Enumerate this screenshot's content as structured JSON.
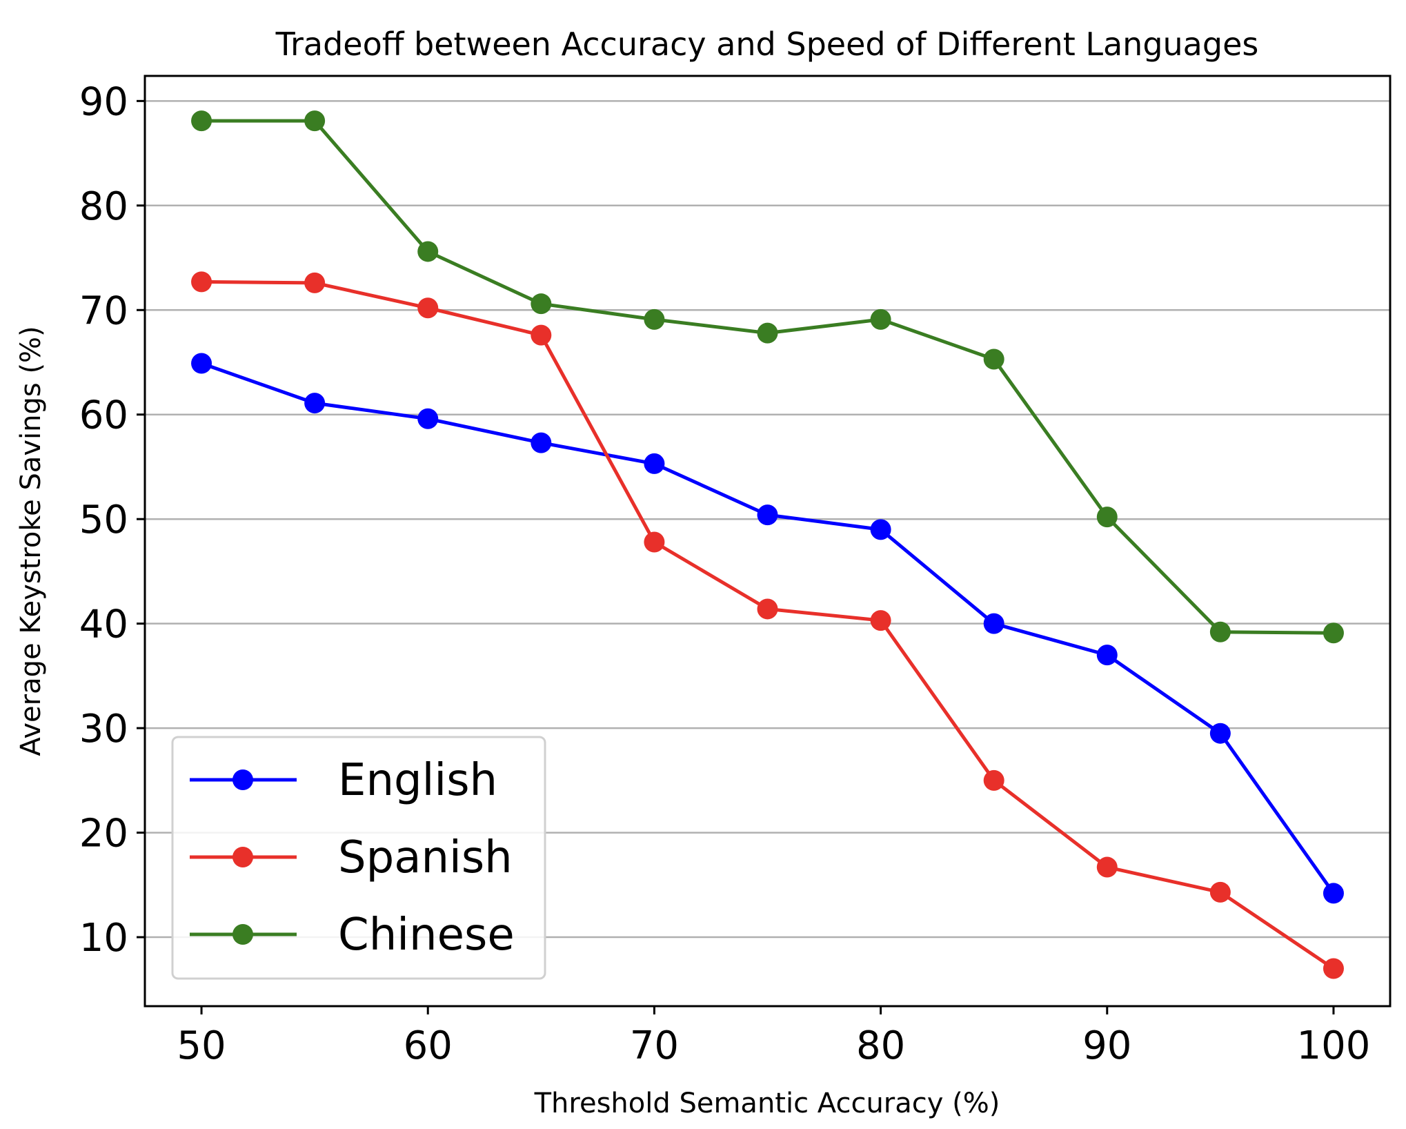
{
  "chart_data": {
    "type": "line",
    "title": "Tradeoff between Accuracy and Speed of Different Languages",
    "xlabel": "Threshold Semantic Accuracy (%)",
    "ylabel": "Average Keystroke Savings (%)",
    "xlim": [
      47.5,
      102.5
    ],
    "ylim": [
      3.4,
      92.4
    ],
    "xticks": [
      50,
      60,
      70,
      80,
      90,
      100
    ],
    "yticks": [
      10,
      20,
      30,
      40,
      50,
      60,
      70,
      80,
      90
    ],
    "grid": "horizontal",
    "legend_position": "lower-left",
    "x": [
      50,
      55,
      60,
      65,
      70,
      75,
      80,
      85,
      90,
      95,
      100
    ],
    "series": [
      {
        "name": "English",
        "color": "#0000ff",
        "values": [
          64.9,
          61.1,
          59.6,
          57.3,
          55.3,
          50.4,
          49.0,
          40.0,
          37.0,
          29.5,
          14.2
        ]
      },
      {
        "name": "Spanish",
        "color": "#e8302a",
        "values": [
          72.7,
          72.6,
          70.2,
          67.6,
          47.8,
          41.4,
          40.3,
          25.0,
          16.7,
          14.3,
          7.0
        ]
      },
      {
        "name": "Chinese",
        "color": "#3a7d22",
        "values": [
          88.1,
          88.1,
          75.6,
          70.6,
          69.1,
          67.8,
          69.1,
          65.3,
          50.2,
          39.2,
          39.1
        ]
      }
    ]
  }
}
